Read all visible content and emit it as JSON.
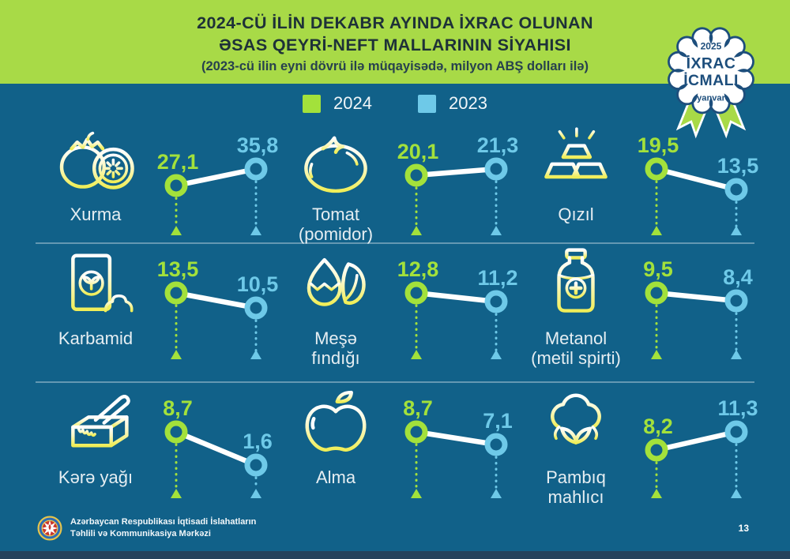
{
  "header": {
    "title_line1": "2024-CÜ İLİN DEKABR AYINDA İXRAC OLUNAN",
    "title_line2": "ƏSAS QEYRİ-NEFT MALLARININ SİYAHISI",
    "subtitle": "(2023-cü ilin eyni dövrü ilə müqayisədə, milyon ABŞ dolları ilə)"
  },
  "badge": {
    "year": "2025",
    "line1": "İXRAC",
    "line2": "İCMALI",
    "month": "yanvar"
  },
  "legend": [
    {
      "label": "2024",
      "color": "#a3e13b"
    },
    {
      "label": "2023",
      "color": "#6ec9e8"
    }
  ],
  "colors": {
    "header_green": "#a8da47",
    "bg_teal": "#116189",
    "accent_2024": "#a3e13b",
    "accent_2023": "#6ec9e8",
    "badge_navy": "#1d4e7c",
    "title_dark": "#1e3138",
    "bottom_strip": "#25425c",
    "icon_yellow": "#f0ee58"
  },
  "items": [
    {
      "name": "Xurma",
      "name_lines": [
        "Xurma"
      ],
      "icon": "persimmon-icon",
      "value_2024": 27.1,
      "value_2023": 35.8,
      "label_2024": "27,1",
      "label_2023": "35,8"
    },
    {
      "name": "Tomat (pomidor)",
      "name_lines": [
        "Tomat",
        "(pomidor)"
      ],
      "icon": "tomato-icon",
      "value_2024": 20.1,
      "value_2023": 21.3,
      "label_2024": "20,1",
      "label_2023": "21,3"
    },
    {
      "name": "Qızıl",
      "name_lines": [
        "Qızıl"
      ],
      "icon": "gold-bars-icon",
      "value_2024": 19.5,
      "value_2023": 13.5,
      "label_2024": "19,5",
      "label_2023": "13,5"
    },
    {
      "name": "Karbamid",
      "name_lines": [
        "Karbamid"
      ],
      "icon": "fertilizer-bag-icon",
      "value_2024": 13.5,
      "value_2023": 10.5,
      "label_2024": "13,5",
      "label_2023": "10,5"
    },
    {
      "name": "Meşə fındığı",
      "name_lines": [
        "Meşə",
        "fındığı"
      ],
      "icon": "hazelnut-icon",
      "value_2024": 12.8,
      "value_2023": 11.2,
      "label_2024": "12,8",
      "label_2023": "11,2"
    },
    {
      "name": "Metanol (metil spirti)",
      "name_lines": [
        "Metanol",
        "(metil spirti)"
      ],
      "icon": "bottle-icon",
      "value_2024": 9.5,
      "value_2023": 8.4,
      "label_2024": "9,5",
      "label_2023": "8,4"
    },
    {
      "name": "Kərə yağı",
      "name_lines": [
        "Kərə yağı"
      ],
      "icon": "butter-icon",
      "value_2024": 8.7,
      "value_2023": 1.6,
      "label_2024": "8,7",
      "label_2023": "1,6"
    },
    {
      "name": "Alma",
      "name_lines": [
        "Alma"
      ],
      "icon": "apple-icon",
      "value_2024": 8.7,
      "value_2023": 7.1,
      "label_2024": "8,7",
      "label_2023": "7,1"
    },
    {
      "name": "Pambıq mahlıcı",
      "name_lines": [
        "Pambıq",
        "mahlıcı"
      ],
      "icon": "cotton-icon",
      "value_2024": 8.2,
      "value_2023": 11.3,
      "label_2024": "8,2",
      "label_2023": "11,3"
    }
  ],
  "chart_data": {
    "type": "scatter",
    "title": "2024-cü ilin dekabr ayında ixrac olunan əsas qeyri-neft mallarının siyahısı",
    "subtitle": "(2023-cü ilin eyni dövrü ilə müqayisədə, milyon ABŞ dolları ilə)",
    "categories": [
      "Xurma",
      "Tomat (pomidor)",
      "Qızıl",
      "Karbamid",
      "Meşə fındığı",
      "Metanol (metil spirti)",
      "Kərə yağı",
      "Alma",
      "Pambıq mahlıcı"
    ],
    "series": [
      {
        "name": "2024",
        "color": "#a3e13b",
        "values": [
          27.1,
          20.1,
          19.5,
          13.5,
          12.8,
          9.5,
          8.7,
          8.7,
          8.2
        ]
      },
      {
        "name": "2023",
        "color": "#6ec9e8",
        "values": [
          35.8,
          21.3,
          13.5,
          10.5,
          11.2,
          8.4,
          1.6,
          7.1,
          11.3
        ]
      }
    ],
    "legend_position": "top",
    "unit": "milyon ABŞ dolları"
  },
  "footer": {
    "org_line1": "Azərbaycan Respublikası İqtisadi İslahatların",
    "org_line2": "Təhlili və Kommunikasiya Mərkəzi",
    "page": "13"
  }
}
